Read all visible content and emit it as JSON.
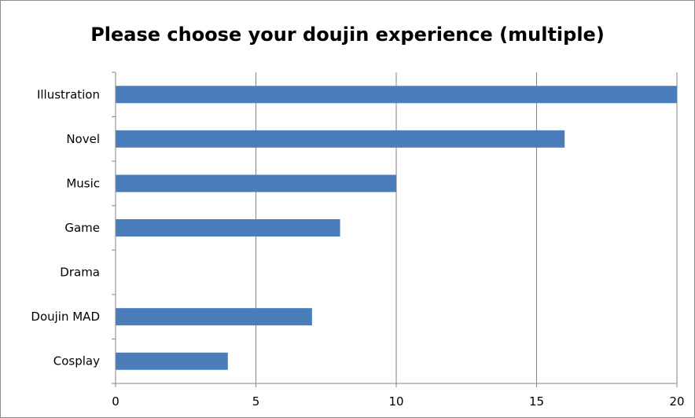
{
  "chart_data": {
    "type": "bar",
    "orientation": "horizontal",
    "title": "Please choose your doujin experience (multiple)",
    "categories": [
      "Illustration",
      "Novel",
      "Music",
      "Game",
      "Drama",
      "Doujin MAD",
      "Cosplay"
    ],
    "values": [
      20,
      16,
      10,
      8,
      0,
      7,
      4
    ],
    "xlim": [
      0,
      20
    ],
    "xticks": [
      0,
      5,
      10,
      15,
      20
    ],
    "grid": "vertical",
    "legend": "none",
    "bar_color": "#4a7ebb"
  }
}
